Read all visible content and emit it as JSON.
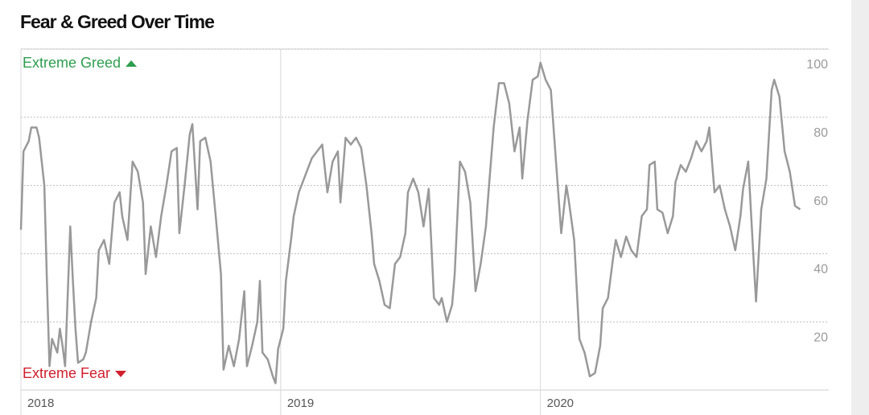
{
  "chart_data": {
    "type": "line",
    "title": "Fear & Greed Over Time",
    "annotations": [
      {
        "text": "Extreme Greed",
        "color": "#2e9e4f"
      },
      {
        "text": "Extreme Fear",
        "color": "#d0202e"
      }
    ],
    "color": "#999999",
    "xlim": [
      2018,
      2021.11
    ],
    "xticks": [
      2018,
      2019,
      2020
    ],
    "ylim": [
      0,
      100
    ],
    "yticks": [
      20,
      40,
      60,
      80,
      100
    ],
    "grid": true,
    "x": [
      2018.0,
      2018.01,
      2018.03,
      2018.04,
      2018.06,
      2018.07,
      2018.09,
      2018.1,
      2018.11,
      2018.12,
      2018.14,
      2018.15,
      2018.16,
      2018.17,
      2018.19,
      2018.2,
      2018.21,
      2018.22,
      2018.24,
      2018.25,
      2018.27,
      2018.29,
      2018.3,
      2018.32,
      2018.34,
      2018.36,
      2018.38,
      2018.39,
      2018.41,
      2018.43,
      2018.45,
      2018.47,
      2018.48,
      2018.5,
      2018.52,
      2018.54,
      2018.56,
      2018.58,
      2018.6,
      2018.61,
      2018.63,
      2018.65,
      2018.66,
      2018.68,
      2018.69,
      2018.71,
      2018.73,
      2018.75,
      2018.77,
      2018.78,
      2018.8,
      2018.82,
      2018.84,
      2018.86,
      2018.87,
      2018.89,
      2018.91,
      2018.92,
      2018.93,
      2018.95,
      2018.97,
      2018.98,
      2018.99,
      2019.01,
      2019.02,
      2019.04,
      2019.05,
      2019.07,
      2019.09,
      2019.1,
      2019.12,
      2019.14,
      2019.16,
      2019.18,
      2019.2,
      2019.22,
      2019.23,
      2019.25,
      2019.27,
      2019.29,
      2019.31,
      2019.33,
      2019.35,
      2019.36,
      2019.38,
      2019.4,
      2019.42,
      2019.44,
      2019.46,
      2019.48,
      2019.49,
      2019.51,
      2019.53,
      2019.55,
      2019.57,
      2019.59,
      2019.61,
      2019.62,
      2019.64,
      2019.66,
      2019.67,
      2019.69,
      2019.71,
      2019.73,
      2019.75,
      2019.77,
      2019.79,
      2019.8,
      2019.82,
      2019.84,
      2019.86,
      2019.88,
      2019.9,
      2019.92,
      2019.93,
      2019.95,
      2019.97,
      2019.99,
      2020.0,
      2020.02,
      2020.04,
      2020.06,
      2020.08,
      2020.1,
      2020.11,
      2020.13,
      2020.15,
      2020.17,
      2020.19,
      2020.21,
      2020.23,
      2020.24,
      2020.26,
      2020.28,
      2020.29,
      2020.31,
      2020.33,
      2020.35,
      2020.37,
      2020.39,
      2020.41,
      2020.42,
      2020.44,
      2020.45,
      2020.47,
      2020.49,
      2020.51,
      2020.52,
      2020.54,
      2020.56,
      2020.58,
      2020.6,
      2020.62,
      2020.64,
      2020.65,
      2020.67,
      2020.69,
      2020.71,
      2020.73,
      2020.75,
      2020.77,
      2020.78,
      2020.8,
      2020.82,
      2020.83,
      2020.85,
      2020.87,
      2020.89,
      2020.9,
      2020.92,
      2020.94,
      2020.96,
      2020.98,
      2021.0
    ],
    "values": [
      47,
      70,
      73,
      77,
      77,
      74,
      60,
      32,
      7,
      15,
      11,
      18,
      13,
      7,
      48,
      32,
      18,
      8,
      9,
      11,
      20,
      27,
      41,
      44,
      37,
      55,
      58,
      51,
      44,
      67,
      64,
      55,
      34,
      48,
      39,
      51,
      60,
      70,
      71,
      46,
      60,
      75,
      78,
      53,
      73,
      74,
      67,
      51,
      34,
      6,
      13,
      7,
      15,
      29,
      7,
      13,
      20,
      32,
      11,
      9,
      4,
      2,
      12,
      18,
      32,
      44,
      51,
      58,
      62,
      64,
      68,
      70,
      72,
      58,
      67,
      70,
      55,
      74,
      72,
      74,
      71,
      60,
      46,
      37,
      32,
      25,
      24,
      37,
      39,
      46,
      58,
      62,
      58,
      48,
      59,
      27,
      25,
      27,
      20,
      25,
      34,
      67,
      64,
      55,
      29,
      37,
      48,
      58,
      77,
      90,
      90,
      84,
      70,
      77,
      62,
      79,
      91,
      92,
      96,
      91,
      88,
      67,
      46,
      60,
      55,
      44,
      15,
      11,
      4,
      5,
      13,
      24,
      27,
      39,
      44,
      39,
      45,
      41,
      39,
      51,
      53,
      66,
      67,
      53,
      52,
      46,
      51,
      61,
      66,
      64,
      68,
      73,
      70,
      73,
      77,
      58,
      60,
      53,
      48,
      41,
      51,
      59,
      67,
      39,
      26,
      53,
      62,
      88,
      91,
      86,
      70,
      64,
      54,
      53
    ]
  }
}
